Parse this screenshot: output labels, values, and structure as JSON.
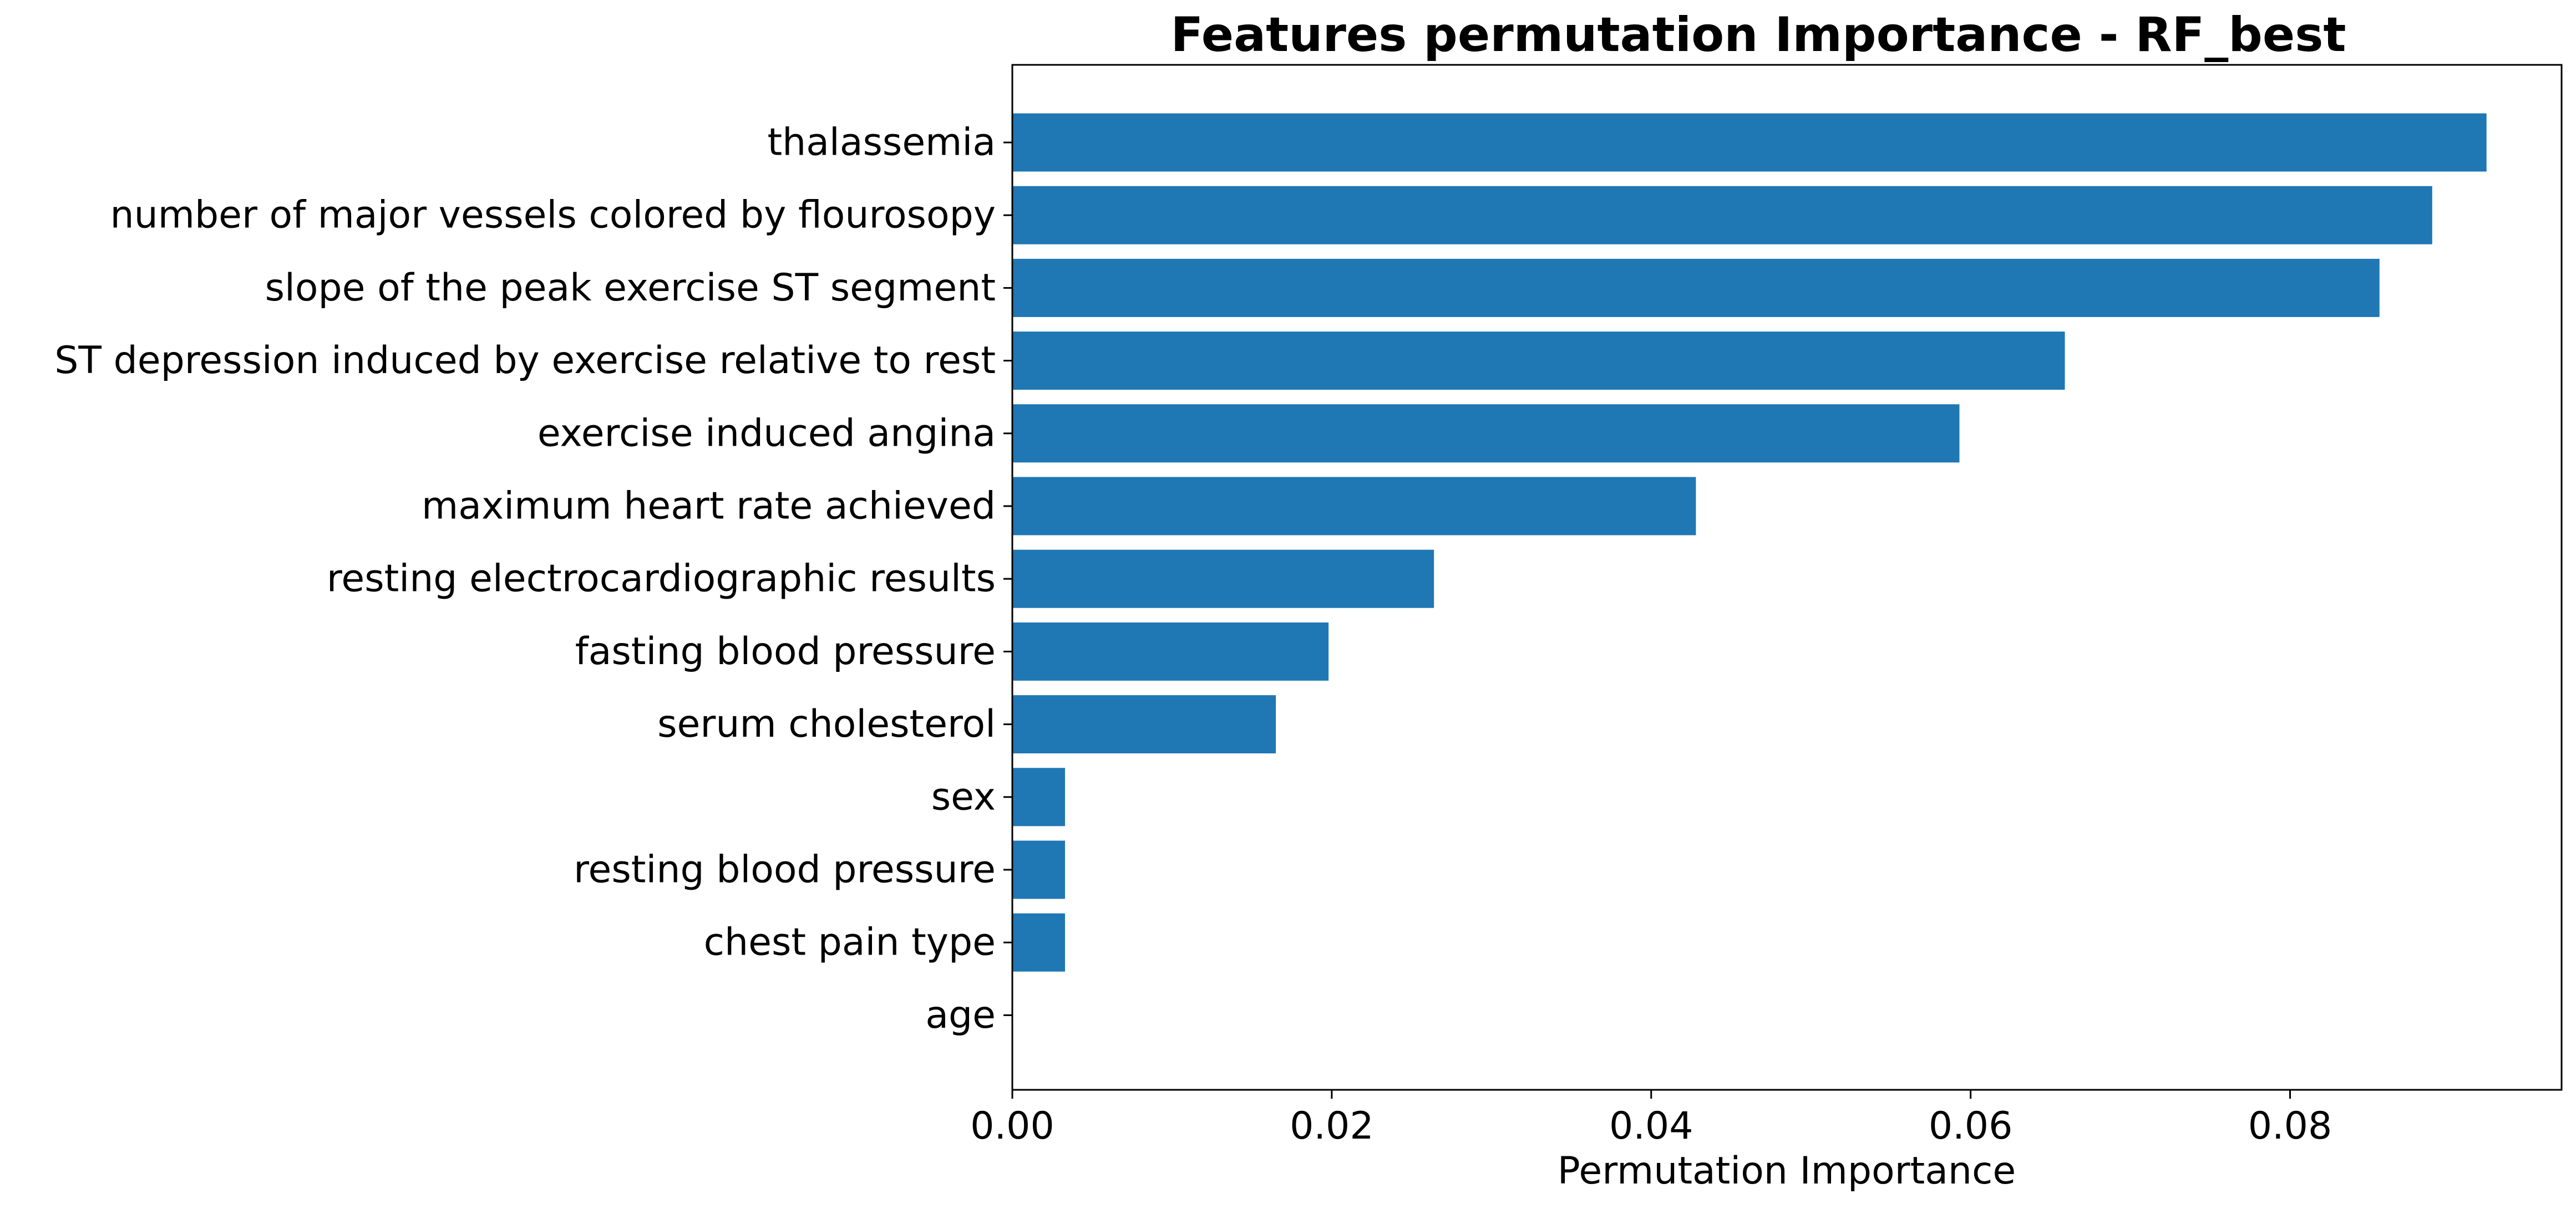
{
  "chart_data": {
    "type": "bar",
    "orientation": "horizontal",
    "title": "Features permutation Importance - RF_best",
    "xlabel": "Permutation Importance",
    "ylabel": "",
    "xlim": [
      0,
      0.097
    ],
    "xticks": [
      0.0,
      0.02,
      0.04,
      0.06,
      0.08
    ],
    "xtick_labels": [
      "0.00",
      "0.02",
      "0.04",
      "0.06",
      "0.08"
    ],
    "grid": false,
    "bar_color": "#1f77b4",
    "categories": [
      "thalassemia",
      "number of major vessels colored by flourosopy",
      "slope of the peak exercise ST segment",
      "ST depression induced by exercise relative to rest",
      "exercise induced angina",
      "maximum heart rate achieved",
      "resting electrocardiographic results",
      "fasting blood pressure",
      "serum cholesterol",
      "sex",
      "resting blood pressure",
      "chest pain type",
      "age"
    ],
    "values": [
      0.0923,
      0.0889,
      0.0856,
      0.0659,
      0.0593,
      0.0428,
      0.0264,
      0.0198,
      0.0165,
      0.0033,
      0.0033,
      0.0033,
      0.0
    ]
  }
}
